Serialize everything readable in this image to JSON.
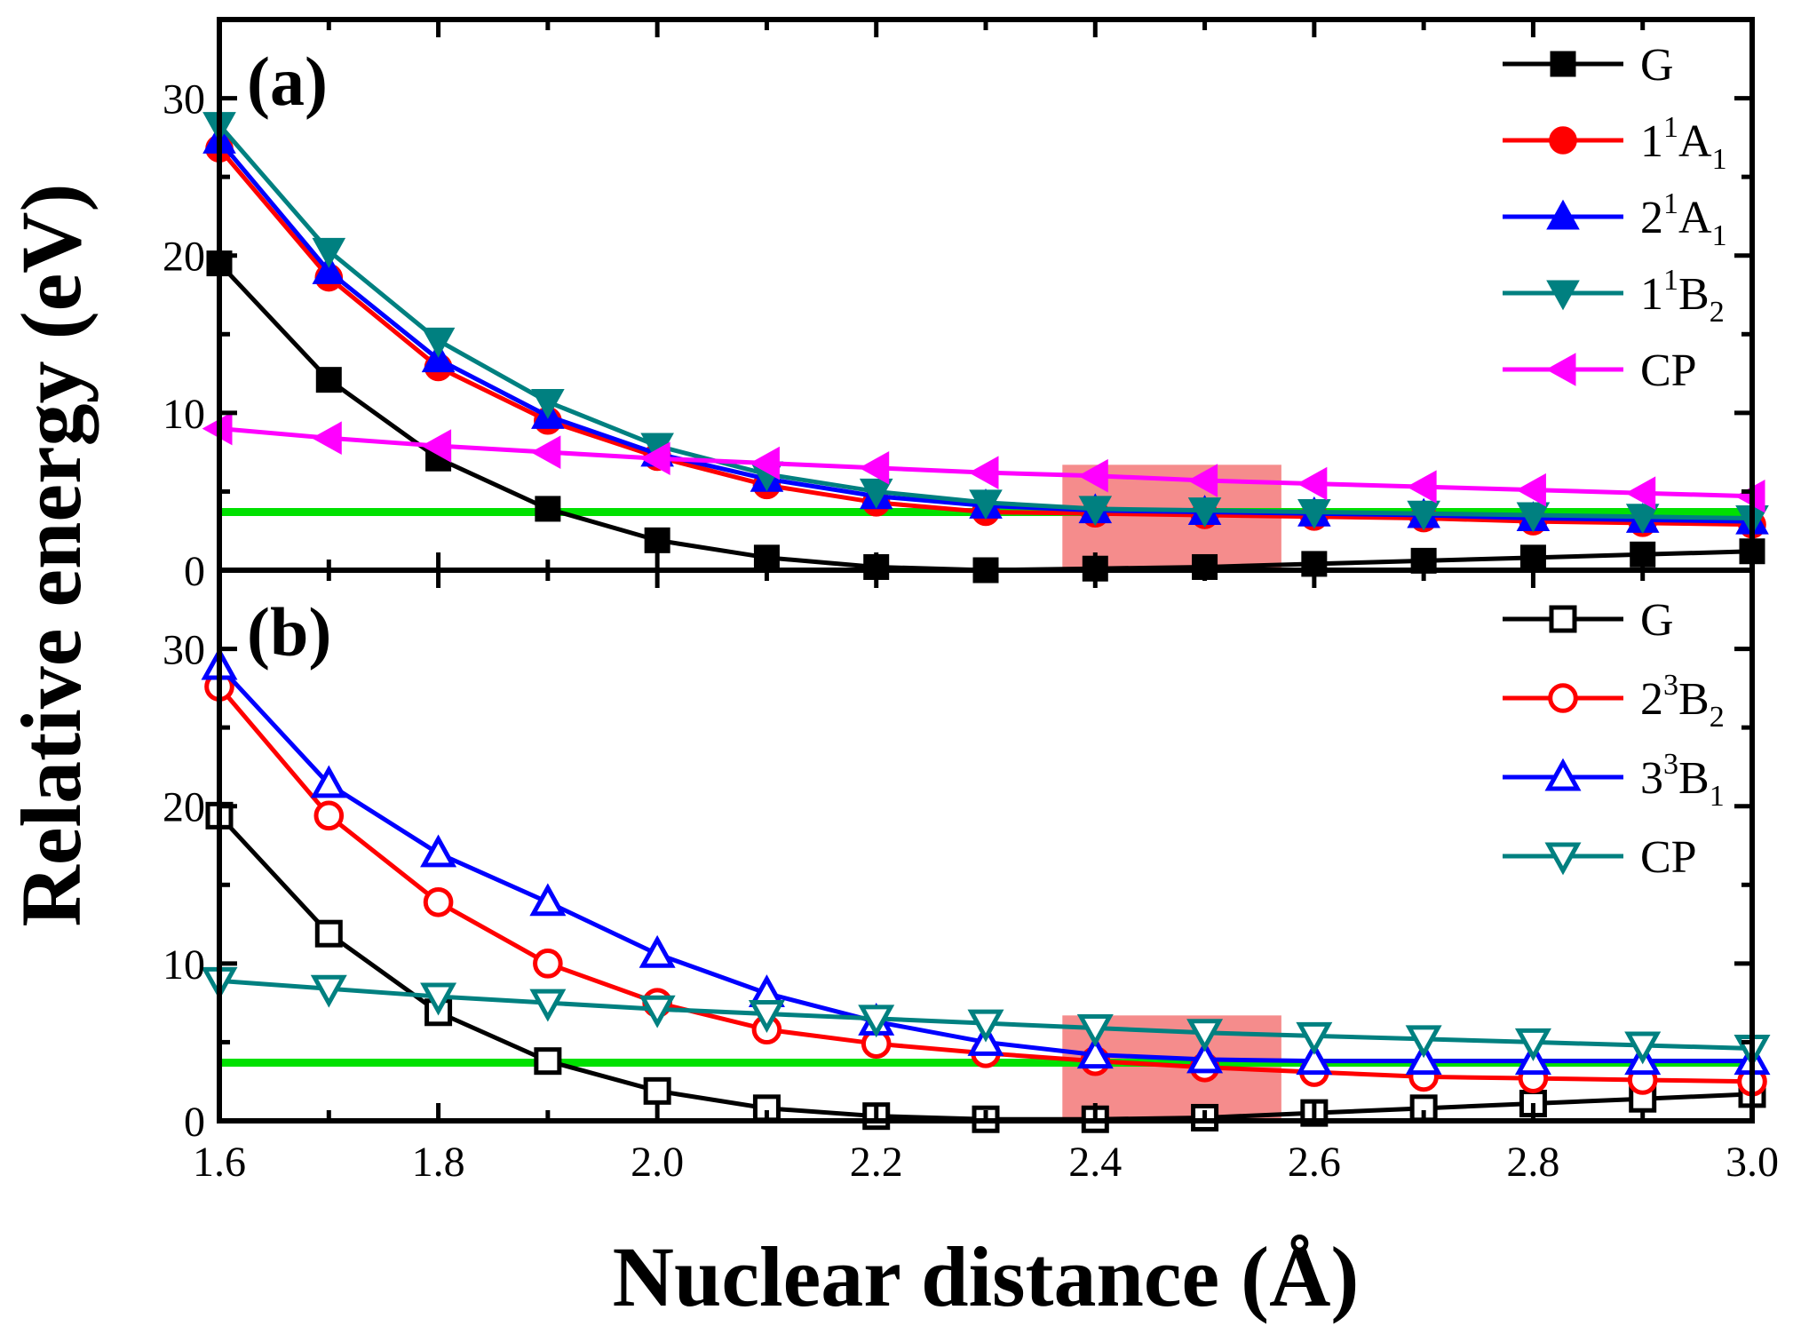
{
  "chart_data": [
    {
      "type": "line",
      "panel_label": "(a)",
      "xlim": [
        1.6,
        3.0
      ],
      "ylim": [
        0,
        35
      ],
      "x_ticks": [
        "1.6",
        "1.8",
        "2.0",
        "2.2",
        "2.4",
        "2.6",
        "2.8",
        "3.0"
      ],
      "y_ticks": [
        "0",
        "10",
        "20",
        "30"
      ],
      "x": [
        1.6,
        1.7,
        1.8,
        1.9,
        2.0,
        2.1,
        2.2,
        2.3,
        2.4,
        2.5,
        2.6,
        2.7,
        2.8,
        2.9,
        3.0
      ],
      "reference_line": {
        "y": 3.7,
        "color": "#00e000"
      },
      "highlight_band": {
        "x_range": [
          2.37,
          2.57
        ],
        "y_range": [
          0,
          6.7
        ],
        "color": "#f47f7f"
      },
      "legend_position": "top-right",
      "series": [
        {
          "name": "G",
          "label_main": "G",
          "label_sup": "",
          "label_sub": "",
          "color": "#000000",
          "marker": "square",
          "filled": true,
          "values": [
            19.5,
            12.1,
            7.1,
            3.9,
            1.9,
            0.8,
            0.2,
            0.0,
            0.1,
            0.2,
            0.4,
            0.6,
            0.8,
            1.0,
            1.2
          ]
        },
        {
          "name": "1¹A₁",
          "label_main": "1",
          "label_sup": "1",
          "label_sub": "1",
          "label_letter": "A",
          "color": "#ff0000",
          "marker": "circle",
          "filled": true,
          "values": [
            26.8,
            18.6,
            12.9,
            9.5,
            7.2,
            5.4,
            4.3,
            3.7,
            3.6,
            3.5,
            3.4,
            3.3,
            3.1,
            3.0,
            2.9
          ]
        },
        {
          "name": "2¹A₁",
          "label_main": "2",
          "label_sup": "1",
          "label_sub": "1",
          "label_letter": "A",
          "color": "#0000ff",
          "marker": "triangle-up",
          "filled": true,
          "values": [
            27.3,
            19.0,
            13.4,
            9.8,
            7.4,
            5.8,
            4.7,
            4.1,
            3.8,
            3.7,
            3.6,
            3.5,
            3.3,
            3.2,
            3.1
          ]
        },
        {
          "name": "1¹B₂",
          "label_main": "1",
          "label_sup": "1",
          "label_sub": "2",
          "label_letter": "B",
          "color": "#008080",
          "marker": "triangle-down",
          "filled": true,
          "values": [
            28.3,
            20.3,
            14.6,
            10.7,
            7.9,
            6.1,
            5.0,
            4.3,
            3.9,
            3.8,
            3.7,
            3.6,
            3.5,
            3.4,
            3.3
          ]
        },
        {
          "name": "CP",
          "label_main": "CP",
          "label_sup": "",
          "label_sub": "",
          "color": "#ff00ff",
          "marker": "triangle-left",
          "filled": true,
          "values": [
            9.0,
            8.4,
            7.9,
            7.5,
            7.1,
            6.8,
            6.5,
            6.2,
            6.0,
            5.7,
            5.5,
            5.3,
            5.1,
            4.9,
            4.7
          ]
        }
      ]
    },
    {
      "type": "line",
      "panel_label": "(b)",
      "xlim": [
        1.6,
        3.0
      ],
      "ylim": [
        0,
        35
      ],
      "x_ticks": [
        "1.6",
        "1.8",
        "2.0",
        "2.2",
        "2.4",
        "2.6",
        "2.8",
        "3.0"
      ],
      "y_ticks": [
        "0",
        "10",
        "20",
        "30"
      ],
      "x": [
        1.6,
        1.7,
        1.8,
        1.9,
        2.0,
        2.1,
        2.2,
        2.3,
        2.4,
        2.5,
        2.6,
        2.7,
        2.8,
        2.9,
        3.0
      ],
      "reference_line": {
        "y": 3.7,
        "color": "#00e000"
      },
      "highlight_band": {
        "x_range": [
          2.37,
          2.57
        ],
        "y_range": [
          0,
          6.7
        ],
        "color": "#f47f7f"
      },
      "legend_position": "top-right",
      "series": [
        {
          "name": "G",
          "label_main": "G",
          "label_sup": "",
          "label_sub": "",
          "color": "#000000",
          "marker": "square",
          "filled": false,
          "values": [
            19.4,
            11.9,
            6.9,
            3.8,
            1.9,
            0.8,
            0.3,
            0.1,
            0.1,
            0.2,
            0.5,
            0.8,
            1.1,
            1.4,
            1.7
          ]
        },
        {
          "name": "2³B₂",
          "label_main": "2",
          "label_sup": "3",
          "label_sub": "2",
          "label_letter": "B",
          "color": "#ff0000",
          "marker": "circle",
          "filled": false,
          "values": [
            27.6,
            19.4,
            13.9,
            10.0,
            7.5,
            5.8,
            4.9,
            4.3,
            3.8,
            3.4,
            3.1,
            2.8,
            2.7,
            2.6,
            2.5
          ]
        },
        {
          "name": "3³B₁",
          "label_main": "3",
          "label_sup": "3",
          "label_sub": "1",
          "label_letter": "B",
          "color": "#0000ff",
          "marker": "triangle-up",
          "filled": false,
          "values": [
            28.9,
            21.4,
            17.0,
            13.9,
            10.6,
            8.1,
            6.3,
            5.0,
            4.2,
            3.9,
            3.8,
            3.8,
            3.8,
            3.8,
            3.8
          ]
        },
        {
          "name": "CP",
          "label_main": "CP",
          "label_sup": "",
          "label_sub": "",
          "color": "#008080",
          "marker": "triangle-down",
          "filled": false,
          "values": [
            8.9,
            8.4,
            7.9,
            7.5,
            7.1,
            6.8,
            6.5,
            6.2,
            5.9,
            5.6,
            5.4,
            5.2,
            5.0,
            4.8,
            4.6
          ]
        }
      ]
    }
  ],
  "axes": {
    "xlabel": "Nuclear distance (Å)",
    "ylabel": "Relative energy (eV)"
  }
}
